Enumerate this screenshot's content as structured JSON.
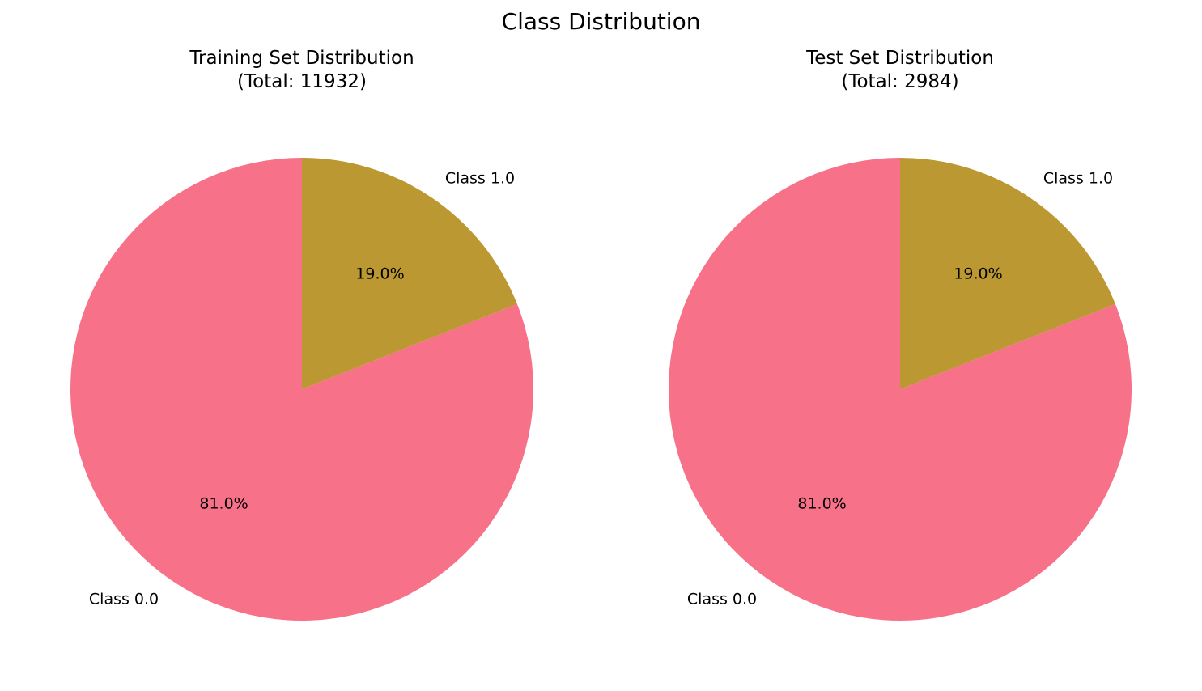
{
  "figure_title": "Class Distribution",
  "chart_data": [
    {
      "type": "pie",
      "title": "Training Set Distribution\n(Total: 11932)",
      "labels": [
        "Class 0.0",
        "Class 1.0"
      ],
      "values": [
        81.0,
        19.0
      ],
      "value_labels": [
        "81.0%",
        "19.0%"
      ],
      "colors": [
        "#f77189",
        "#bb9832"
      ],
      "start_angle_deg": 90,
      "direction": "counterclockwise"
    },
    {
      "type": "pie",
      "title": "Test Set Distribution\n(Total: 2984)",
      "labels": [
        "Class 0.0",
        "Class 1.0"
      ],
      "values": [
        81.0,
        19.0
      ],
      "value_labels": [
        "81.0%",
        "19.0%"
      ],
      "colors": [
        "#f77189",
        "#bb9832"
      ],
      "start_angle_deg": 90,
      "direction": "counterclockwise"
    }
  ]
}
